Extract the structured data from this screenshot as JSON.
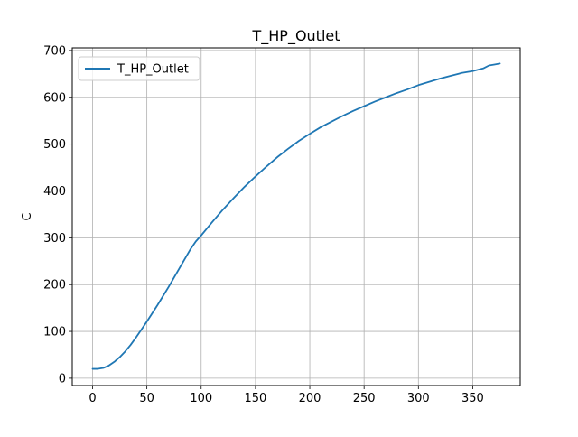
{
  "chart_data": {
    "type": "line",
    "title": "T_HP_Outlet",
    "xlabel": "",
    "ylabel": "C",
    "xlim": [
      -18.7,
      393.7
    ],
    "ylim": [
      -15.6,
      705.6
    ],
    "xticks": [
      0,
      50,
      100,
      150,
      200,
      250,
      300,
      350
    ],
    "yticks": [
      0,
      100,
      200,
      300,
      400,
      500,
      600,
      700
    ],
    "grid": true,
    "legend_position": "upper-left",
    "series": [
      {
        "name": "T_HP_Outlet",
        "color": "#1f77b4",
        "x": [
          0,
          5,
          10,
          15,
          20,
          25,
          30,
          35,
          40,
          45,
          50,
          55,
          60,
          65,
          70,
          75,
          80,
          85,
          90,
          95,
          100,
          110,
          120,
          130,
          140,
          150,
          160,
          170,
          180,
          190,
          200,
          210,
          220,
          230,
          240,
          250,
          260,
          270,
          280,
          290,
          300,
          310,
          320,
          330,
          340,
          350,
          360,
          365,
          370,
          375
        ],
        "y": [
          20,
          20,
          22,
          27,
          35,
          45,
          57,
          71,
          87,
          104,
          121,
          139,
          157,
          176,
          195,
          215,
          235,
          255,
          275,
          292,
          305,
          333,
          360,
          385,
          409,
          431,
          452,
          472,
          490,
          507,
          522,
          536,
          548,
          560,
          571,
          581,
          591,
          600,
          609,
          617,
          626,
          633,
          640,
          646,
          652,
          656,
          662,
          668,
          670,
          672
        ]
      }
    ]
  }
}
